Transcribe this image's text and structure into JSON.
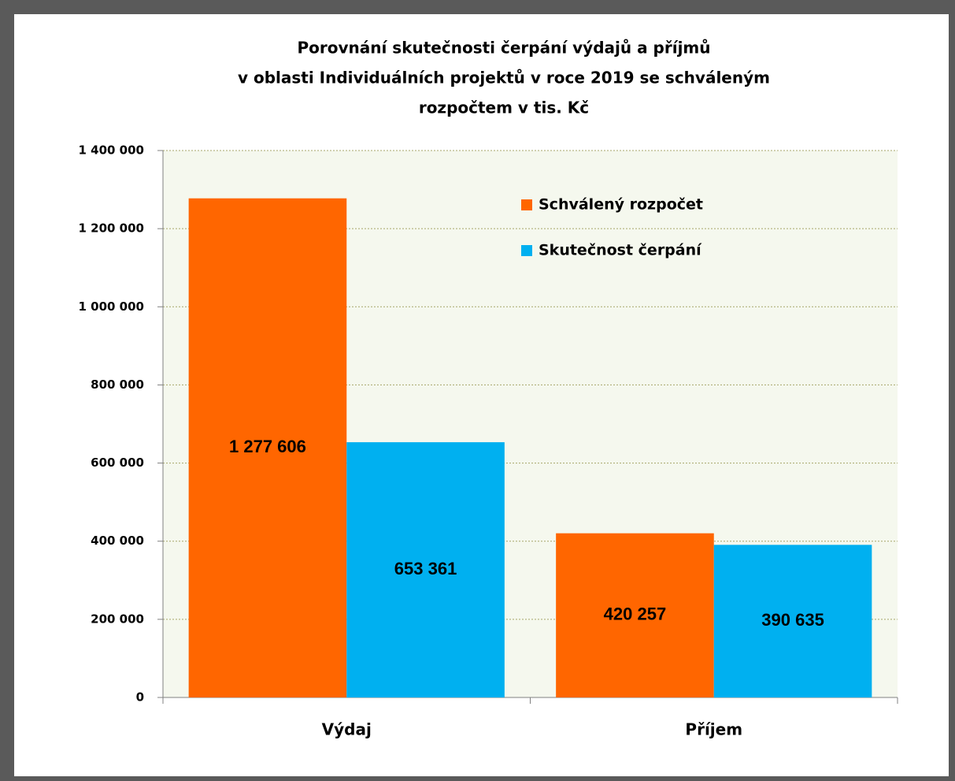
{
  "chart_data": {
    "type": "bar",
    "title": [
      "Porovnání skutečnosti čerpání výdajů a příjmů",
      "v oblasti Individuálních projektů v roce 2019 se schváleným",
      "rozpočtem v tis. Kč"
    ],
    "categories": [
      "Výdaj",
      "Příjem"
    ],
    "series": [
      {
        "name": "Schválený rozpočet",
        "color": "#ff6600",
        "values": [
          1277606,
          420257
        ],
        "value_labels": [
          "1 277 606",
          "420 257"
        ]
      },
      {
        "name": "Skutečnost čerpání",
        "color": "#00b0f0",
        "values": [
          653361,
          390635
        ],
        "value_labels": [
          "653 361",
          "390 635"
        ]
      }
    ],
    "ylim": [
      0,
      1400000
    ],
    "yticks": [
      0,
      {
        "value": 200000,
        "label": "200 000"
      },
      {
        "value": 400000,
        "label": "400 000"
      },
      {
        "value": 600000,
        "label": "600 000"
      },
      {
        "value": 800000,
        "label": "800 000"
      },
      {
        "value": 1000000,
        "label": "1 000 000"
      },
      {
        "value": 1200000,
        "label": "1 200 000"
      },
      {
        "value": 1400000,
        "label": "1 400 000"
      }
    ],
    "grid": true,
    "legend": "upper right"
  }
}
